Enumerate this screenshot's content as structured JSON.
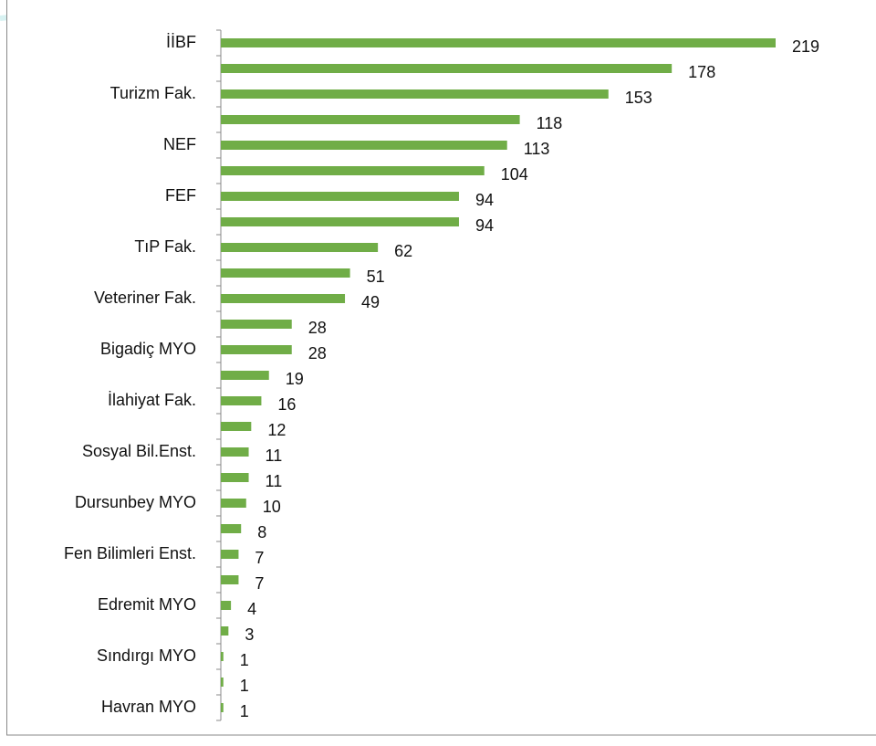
{
  "chart_data": {
    "type": "hbar",
    "color": "#70ad47",
    "categories": [
      "İİBF",
      null,
      "Turizm Fak.",
      null,
      "NEF",
      null,
      "FEF",
      null,
      "TıP Fak.",
      null,
      "Veteriner Fak.",
      null,
      "Bigadiç MYO",
      null,
      "İlahiyat Fak.",
      null,
      "Sosyal Bil.Enst.",
      null,
      "Dursunbey MYO",
      null,
      "Fen Bilimleri Enst.",
      null,
      "Edremit MYO",
      null,
      "Sındırgı MYO",
      null,
      "Havran MYO"
    ],
    "values": [
      219,
      178,
      153,
      118,
      113,
      104,
      94,
      94,
      62,
      51,
      49,
      28,
      28,
      19,
      16,
      12,
      11,
      11,
      10,
      8,
      7,
      7,
      4,
      3,
      1,
      1,
      1
    ]
  }
}
